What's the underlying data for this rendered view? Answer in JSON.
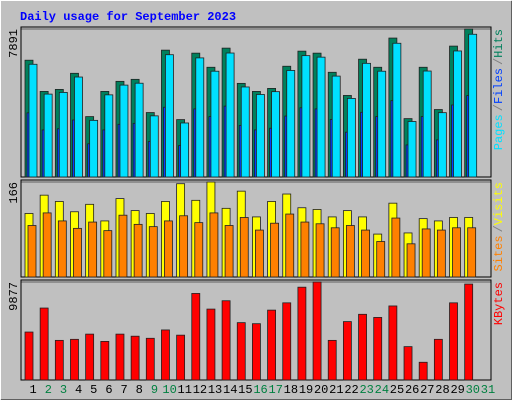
{
  "chart_data": {
    "type": "bar",
    "title": "Daily usage for September 2023",
    "categories": [
      "1",
      "2",
      "3",
      "4",
      "5",
      "6",
      "7",
      "8",
      "9",
      "10",
      "11",
      "12",
      "13",
      "14",
      "15",
      "16",
      "17",
      "18",
      "19",
      "20",
      "21",
      "22",
      "23",
      "24",
      "25",
      "26",
      "27",
      "28",
      "29",
      "30",
      "31"
    ],
    "category_colors": [
      "#000000",
      "#008040",
      "#008040",
      "#000000",
      "#000000",
      "#000000",
      "#000000",
      "#000000",
      "#008040",
      "#008040",
      "#000000",
      "#000000",
      "#000000",
      "#000000",
      "#000000",
      "#008040",
      "#008040",
      "#000000",
      "#000000",
      "#000000",
      "#000000",
      "#000000",
      "#008040",
      "#008040",
      "#000000",
      "#000000",
      "#000000",
      "#000000",
      "#000000",
      "#008040",
      "#008040"
    ],
    "legend_separator": "/",
    "panels": [
      {
        "ylim": [
          0,
          7891
        ],
        "yticks": [
          7891
        ],
        "series": [
          {
            "name": "Hits",
            "color": "#00805c",
            "values": [
              6227,
              4563,
              4670,
              5529,
              3221,
              4563,
              5100,
              5207,
              3436,
              6764,
              3060,
              6603,
              5851,
              6871,
              4992,
              4563,
              4724,
              5905,
              6710,
              6603,
              5583,
              4348,
              6281,
              5851,
              7408,
              3113,
              5851,
              3597,
              6979,
              7891,
              null
            ]
          },
          {
            "name": "Files",
            "color": "#0040ff",
            "values": [
              3420,
              2510,
              2570,
              3040,
              1770,
              2510,
              2810,
              2860,
              1890,
              3720,
              1680,
              3630,
              3220,
              3780,
              2750,
              2510,
              2600,
              3250,
              3690,
              3630,
              3070,
              2390,
              3450,
              3220,
              4070,
              1710,
              3220,
              1980,
              3840,
              4340,
              null
            ]
          },
          {
            "name": "Pages",
            "color": "#00e0ff",
            "values": [
              6010,
              4420,
              4510,
              5330,
              3020,
              4380,
              4900,
              5000,
              3260,
              6520,
              2880,
              6350,
              5640,
              6610,
              4800,
              4400,
              4550,
              5680,
              6470,
              6390,
              5380,
              4190,
              6060,
              5640,
              7130,
              2960,
              5650,
              3430,
              6720,
              7610,
              null
            ]
          }
        ]
      },
      {
        "ylim": [
          0,
          166
        ],
        "yticks": [
          166
        ],
        "series": [
          {
            "name": "Visits",
            "color": "#ffff00",
            "values": [
              111,
              143,
              132,
              114,
              127,
              98,
              137,
              116,
              111,
              132,
              163,
              134,
              166,
              120,
              150,
              105,
              132,
              145,
              121,
              118,
              105,
              116,
              105,
              75,
              129,
              77,
              102,
              98,
              104,
              104,
              null
            ]
          },
          {
            "name": "Sites",
            "color": "#ff8000",
            "values": [
              90,
              112,
              98,
              85,
              96,
              81,
              108,
              92,
              88,
              98,
              107,
              95,
              112,
              90,
              104,
              82,
              94,
              110,
              96,
              93,
              86,
              90,
              82,
              62,
              103,
              58,
              84,
              82,
              86,
              86,
              null
            ]
          }
        ]
      },
      {
        "ylim": [
          0,
          9877
        ],
        "yticks": [
          9877
        ],
        "series": [
          {
            "name": "KBytes",
            "color": "#ff0000",
            "values": [
              4834,
              7252,
              3994,
              4099,
              4624,
              3889,
              4624,
              4414,
              4204,
              5045,
              4519,
              8723,
              7147,
              7988,
              5781,
              5676,
              7042,
              7777,
              9354,
              9877,
              3994,
              5886,
              6621,
              6306,
              7462,
              3363,
              1787,
              4099,
              7777,
              9669,
              null
            ]
          }
        ]
      }
    ]
  }
}
